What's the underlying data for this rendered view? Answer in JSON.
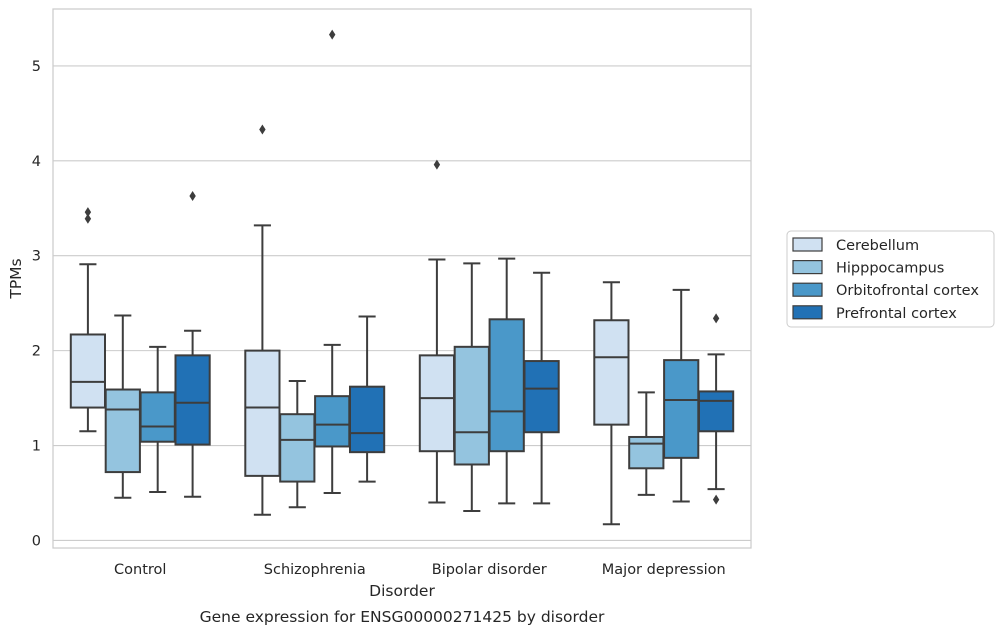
{
  "chart_data": {
    "type": "box",
    "title": "",
    "caption": "Gene expression for ENSG00000271425 by disorder",
    "xlabel": "Disorder",
    "ylabel": "TPMs",
    "ylim": [
      -0.08,
      5.6
    ],
    "yticks": [
      0,
      1,
      2,
      3,
      4,
      5
    ],
    "grid": "horizontal",
    "legend_position": "right",
    "categories": [
      "Control",
      "Schizophrenia",
      "Bipolar disorder",
      "Major depression"
    ],
    "series": [
      {
        "name": "Cerebellum",
        "color": "#d0e1f2",
        "boxes": [
          {
            "whislo": 1.15,
            "q1": 1.4,
            "med": 1.67,
            "q3": 2.17,
            "whishi": 2.91,
            "fliers": [
              3.39,
              3.46
            ]
          },
          {
            "whislo": 0.27,
            "q1": 0.68,
            "med": 1.4,
            "q3": 2.0,
            "whishi": 3.32,
            "fliers": [
              4.33
            ]
          },
          {
            "whislo": 0.4,
            "q1": 0.94,
            "med": 1.5,
            "q3": 1.95,
            "whishi": 2.96,
            "fliers": [
              3.96
            ]
          },
          {
            "whislo": 0.17,
            "q1": 1.22,
            "med": 1.93,
            "q3": 2.32,
            "whishi": 2.72,
            "fliers": []
          }
        ]
      },
      {
        "name": "Hipppocampus",
        "color": "#94c4df",
        "boxes": [
          {
            "whislo": 0.45,
            "q1": 0.72,
            "med": 1.38,
            "q3": 1.59,
            "whishi": 2.37,
            "fliers": []
          },
          {
            "whislo": 0.35,
            "q1": 0.62,
            "med": 1.06,
            "q3": 1.33,
            "whishi": 1.68,
            "fliers": []
          },
          {
            "whislo": 0.31,
            "q1": 0.8,
            "med": 1.14,
            "q3": 2.04,
            "whishi": 2.92,
            "fliers": []
          },
          {
            "whislo": 0.48,
            "q1": 0.76,
            "med": 1.02,
            "q3": 1.09,
            "whishi": 1.56,
            "fliers": []
          }
        ]
      },
      {
        "name": "Orbitofrontal cortex",
        "color": "#4a98c9",
        "boxes": [
          {
            "whislo": 0.51,
            "q1": 1.04,
            "med": 1.2,
            "q3": 1.56,
            "whishi": 2.04,
            "fliers": []
          },
          {
            "whislo": 0.5,
            "q1": 0.99,
            "med": 1.22,
            "q3": 1.52,
            "whishi": 2.06,
            "fliers": [
              5.33
            ]
          },
          {
            "whislo": 0.39,
            "q1": 0.94,
            "med": 1.36,
            "q3": 2.33,
            "whishi": 2.97,
            "fliers": []
          },
          {
            "whislo": 0.41,
            "q1": 0.87,
            "med": 1.48,
            "q3": 1.9,
            "whishi": 2.64,
            "fliers": []
          }
        ]
      },
      {
        "name": "Prefrontal cortex",
        "color": "#2171b5",
        "boxes": [
          {
            "whislo": 0.46,
            "q1": 1.01,
            "med": 1.45,
            "q3": 1.95,
            "whishi": 2.21,
            "fliers": [
              3.63
            ]
          },
          {
            "whislo": 0.62,
            "q1": 0.93,
            "med": 1.13,
            "q3": 1.62,
            "whishi": 2.36,
            "fliers": []
          },
          {
            "whislo": 0.39,
            "q1": 1.14,
            "med": 1.6,
            "q3": 1.89,
            "whishi": 2.82,
            "fliers": []
          },
          {
            "whislo": 0.54,
            "q1": 1.15,
            "med": 1.47,
            "q3": 1.57,
            "whishi": 1.96,
            "fliers": [
              0.43,
              2.34
            ]
          }
        ]
      }
    ]
  }
}
